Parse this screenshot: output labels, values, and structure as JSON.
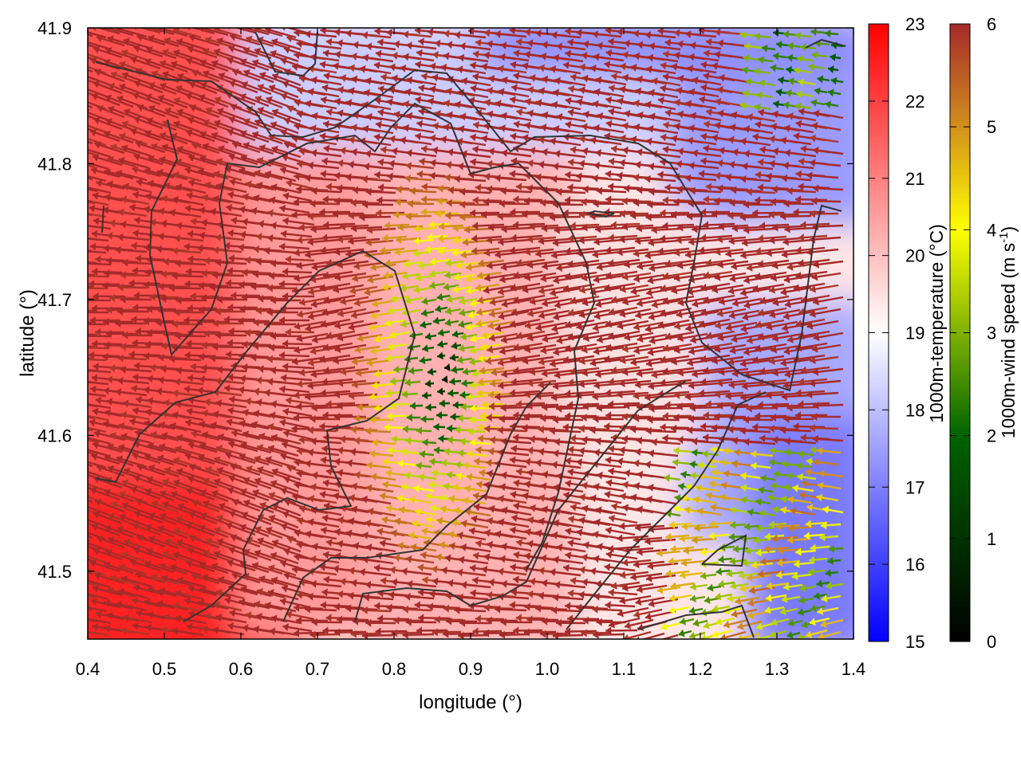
{
  "chart_data": {
    "type": "heatmap",
    "title": "",
    "xlabel": "longitude (°)",
    "ylabel": "latitude (°)",
    "xlim": [
      0.4,
      1.4
    ],
    "ylim": [
      41.45,
      41.9
    ],
    "xticks": [
      "0.4",
      "0.5",
      "0.6",
      "0.7",
      "0.8",
      "0.9",
      "1.0",
      "1.1",
      "1.2",
      "1.3",
      "1.4"
    ],
    "yticks": [
      "41.5",
      "41.6",
      "41.7",
      "41.8",
      "41.9"
    ],
    "grid": false,
    "temperature": {
      "label": "1000m-temperature (°C)",
      "range": [
        15,
        23
      ],
      "ticks": [
        "15",
        "16",
        "17",
        "18",
        "19",
        "20",
        "21",
        "22",
        "23"
      ],
      "colormap": [
        "#0000ff",
        "#ffffff",
        "#ff0000"
      ]
    },
    "wind_speed": {
      "label_parts": [
        "1000m-wind speed (m s",
        "-1",
        ")"
      ],
      "range": [
        0,
        6
      ],
      "ticks": [
        "0",
        "1",
        "2",
        "3",
        "4",
        "5",
        "6"
      ],
      "colormap": [
        "#000000",
        "#006400",
        "#ffff00",
        "#b22222"
      ]
    },
    "contour_color": "#333333",
    "wind_direction": "predominantly from the east (arrows point west)"
  }
}
